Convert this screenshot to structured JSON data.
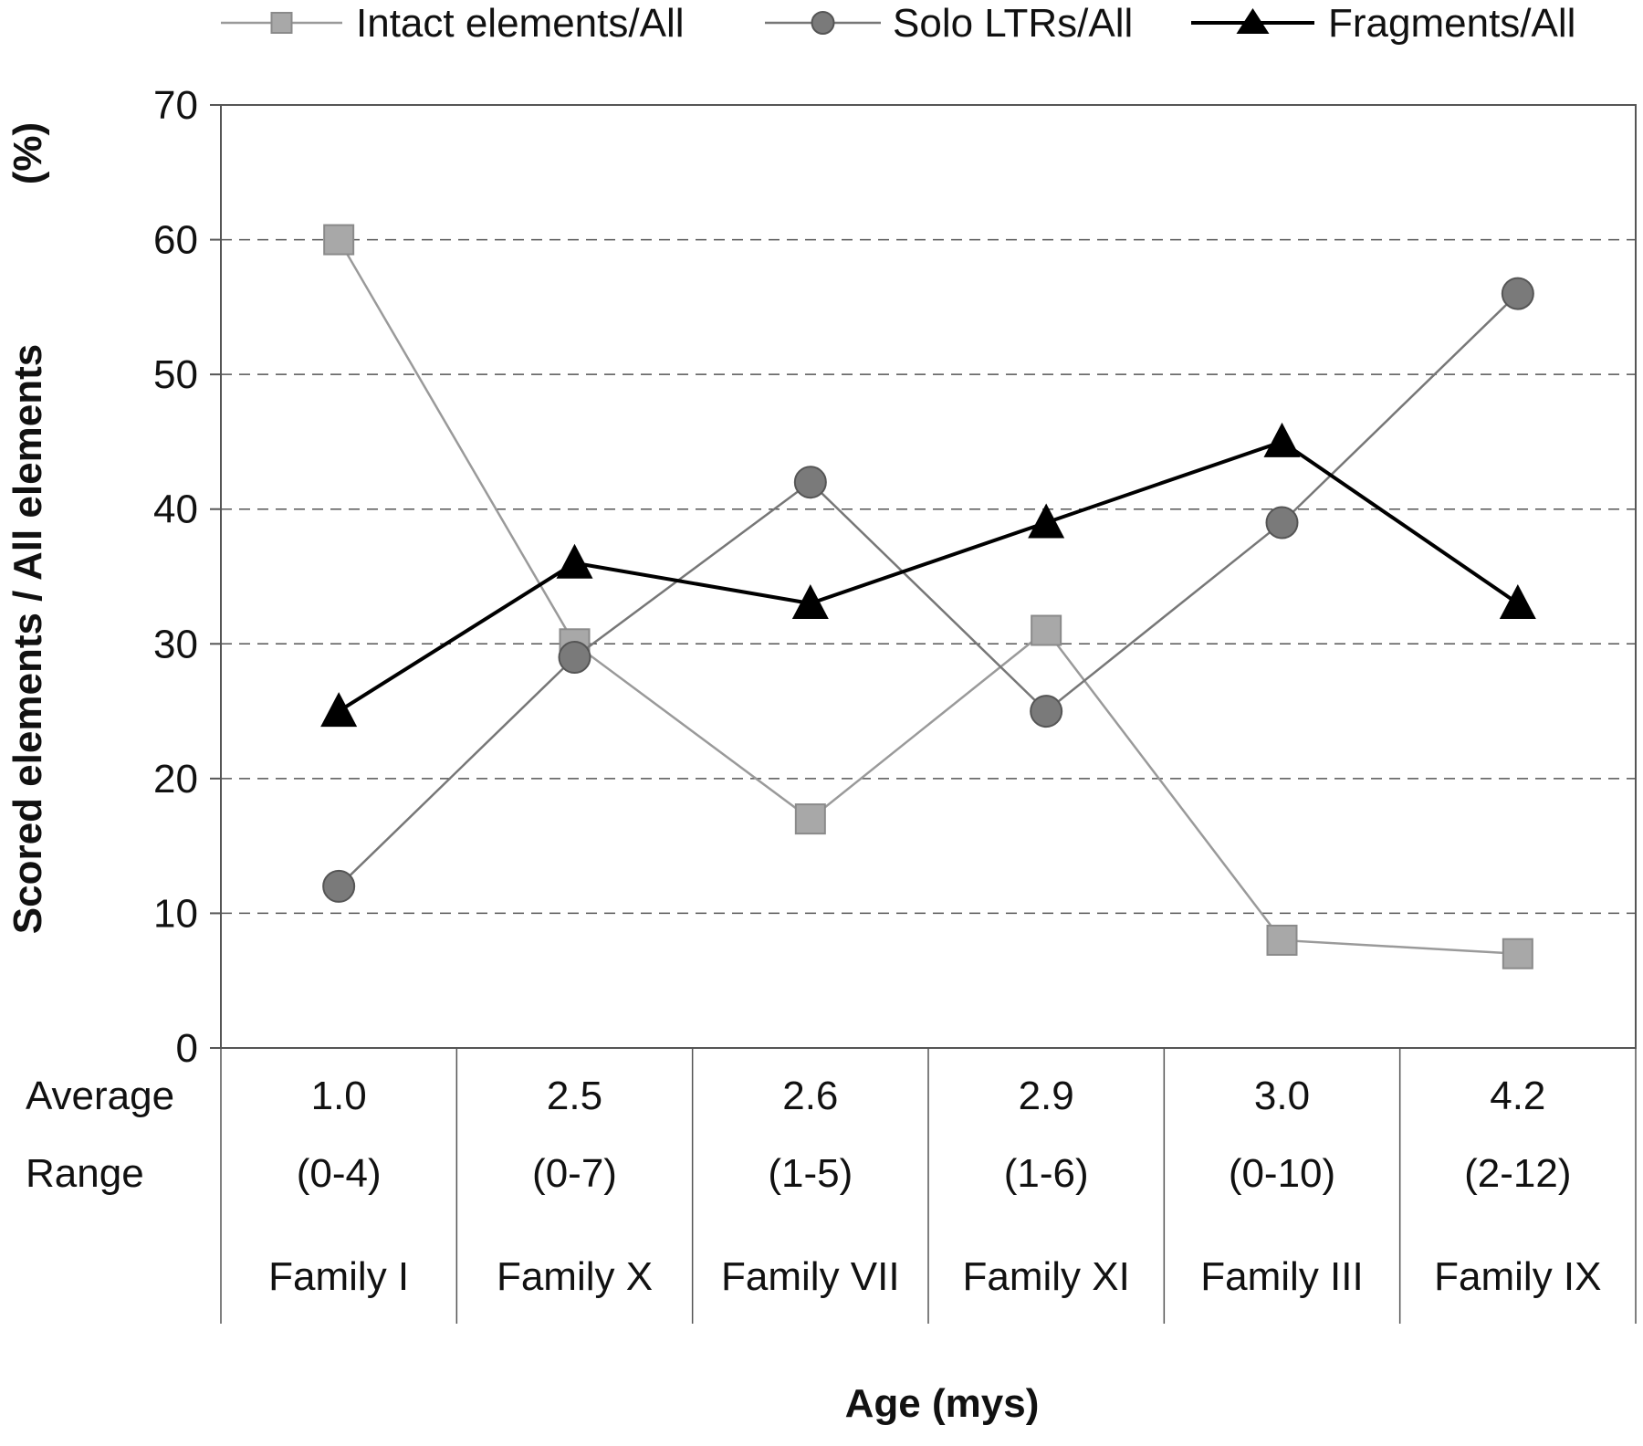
{
  "chart_data": {
    "type": "line",
    "categories": [
      "Family I",
      "Family X",
      "Family VII",
      "Family XI",
      "Family III",
      "Family IX"
    ],
    "series": [
      {
        "name": "Intact elements/All",
        "values": [
          60,
          30,
          17,
          31,
          8,
          7
        ],
        "color": "#9a9a9a",
        "marker": "square"
      },
      {
        "name": "Solo LTRs/All",
        "values": [
          12,
          29,
          42,
          25,
          39,
          56
        ],
        "color": "#777777",
        "marker": "circle"
      },
      {
        "name": "Fragments/All",
        "values": [
          25,
          36,
          33,
          39,
          45,
          33
        ],
        "color": "#000000",
        "marker": "triangle"
      }
    ],
    "ylabel": "Scored elements / All elements",
    "ylabel_unit": "(%)",
    "xlabel": "Age (mys)",
    "ylim": [
      0,
      70
    ],
    "yticks": [
      0,
      10,
      20,
      30,
      40,
      50,
      60,
      70
    ],
    "grid": "horizontal dashed",
    "legend_position": "top",
    "table": {
      "row_labels": [
        "Average",
        "Range"
      ],
      "average": [
        "1.0",
        "2.5",
        "2.6",
        "2.9",
        "3.0",
        "4.2"
      ],
      "range": [
        "(0-4)",
        "(0-7)",
        "(1-5)",
        "(1-6)",
        "(0-10)",
        "(2-12)"
      ]
    }
  }
}
